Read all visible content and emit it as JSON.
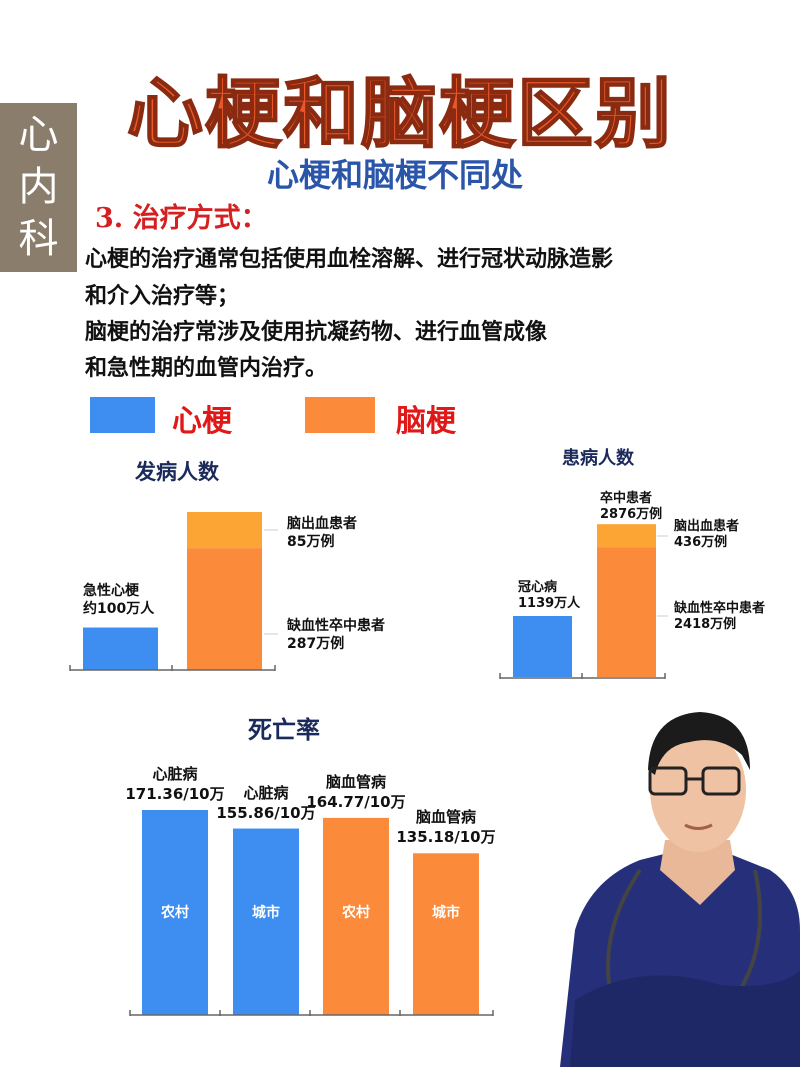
{
  "header": {
    "title": "心梗和脑梗区别",
    "side_tab": "心内科",
    "subtitle": "心梗和脑梗不同处"
  },
  "section": {
    "heading": "3. 治疗方式：",
    "lines": [
      "心梗的治疗通常包括使用血栓溶解、进行冠状动脉造影",
      "和介入治疗等；",
      "脑梗的治疗常涉及使用抗凝药物、进行血管成像",
      "和急性期的血管内治疗。"
    ]
  },
  "legend": [
    {
      "label": "心梗",
      "color": "#3d8ef0"
    },
    {
      "label": "脑梗",
      "color": "#fb8a3a"
    }
  ],
  "colors": {
    "blue": "#3d8ef0",
    "orange": "#fb8a3a",
    "light_orange": "#fca534",
    "title": "#e8582a",
    "subtitle": "#2a55a8",
    "tab": "#8b7d6b"
  },
  "chart_data": [
    {
      "type": "bar",
      "title": "发病人数",
      "unit": "万人/万例",
      "bars": [
        {
          "label_lines": [
            "急性心梗",
            "约100万人"
          ],
          "value": 100,
          "color": "blue"
        },
        {
          "stacked": true,
          "segments": [
            {
              "label_lines": [
                "缺血性卒中患者",
                "287万例"
              ],
              "value": 287,
              "color": "orange"
            },
            {
              "label_lines": [
                "脑出血患者",
                "85万例"
              ],
              "value": 85,
              "color": "light_orange"
            }
          ]
        }
      ]
    },
    {
      "type": "bar",
      "title": "患病人数",
      "bars": [
        {
          "label_lines": [
            "冠心病",
            "1139万人"
          ],
          "value": 1139,
          "color": "blue"
        },
        {
          "stacked": true,
          "total_label_lines": [
            "卒中患者",
            "2876万例"
          ],
          "segments": [
            {
              "label_lines": [
                "缺血性卒中患者",
                "2418万例"
              ],
              "value": 2418,
              "color": "orange"
            },
            {
              "label_lines": [
                "脑出血患者",
                "436万例"
              ],
              "value": 436,
              "color": "light_orange"
            }
          ]
        }
      ]
    },
    {
      "type": "bar",
      "title": "死亡率",
      "bars": [
        {
          "name": "心脏病",
          "value_label": "171.36/10万",
          "value": 171.36,
          "inner": "农村",
          "color": "blue"
        },
        {
          "name": "心脏病",
          "value_label": "155.86/10万",
          "value": 155.86,
          "inner": "城市",
          "color": "blue"
        },
        {
          "name": "脑血管病",
          "value_label": "164.77/10万",
          "value": 164.77,
          "inner": "农村",
          "color": "orange"
        },
        {
          "name": "脑血管病",
          "value_label": "135.18/10万",
          "value": 135.18,
          "inner": "城市",
          "color": "orange"
        }
      ]
    }
  ]
}
